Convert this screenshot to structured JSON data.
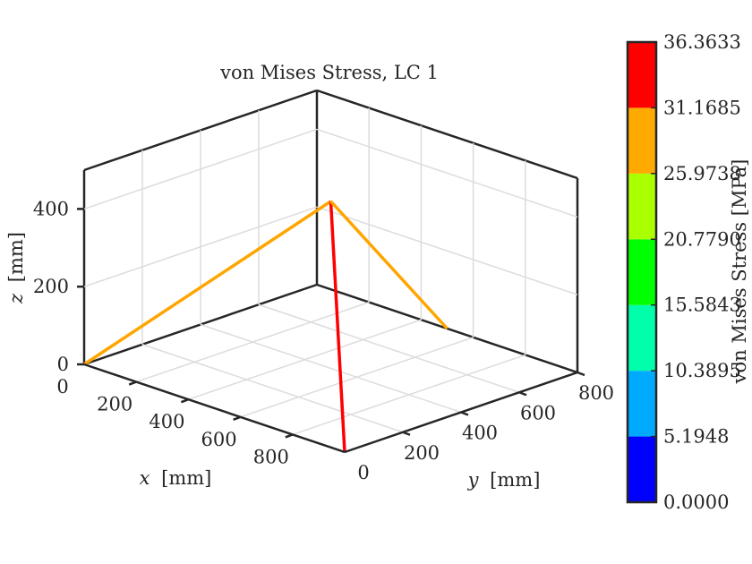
{
  "chart_data": {
    "type": "line",
    "title": "von Mises Stress, LC 1",
    "xlabel_var": "x",
    "xlabel_unit": "[mm]",
    "ylabel_var": "y",
    "ylabel_unit": "[mm]",
    "zlabel_var": "z",
    "zlabel_unit": "[mm]",
    "xlim": [
      0,
      1000
    ],
    "ylim": [
      0,
      800
    ],
    "zlim": [
      0,
      500
    ],
    "x_ticks": [
      "0",
      "200",
      "400",
      "600",
      "800"
    ],
    "y_ticks": [
      "0",
      "200",
      "400",
      "600",
      "800"
    ],
    "z_ticks": [
      "0",
      "200",
      "400"
    ],
    "grid": true,
    "members": [
      {
        "from": [
          0,
          0,
          0
        ],
        "to": [
          500,
          400,
          430
        ],
        "stress": 26.8,
        "color": "#ffa500"
      },
      {
        "from": [
          1000,
          0,
          0
        ],
        "to": [
          500,
          400,
          430
        ],
        "stress": 36.3633,
        "color": "#ff0000"
      },
      {
        "from": [
          500,
          800,
          0
        ],
        "to": [
          500,
          400,
          430
        ],
        "stress": 26.8,
        "color": "#ffa500"
      }
    ],
    "colorbar": {
      "label": "von Mises Stress [MPa]",
      "tick_labels": [
        "0.0000",
        "5.1948",
        "10.3895",
        "15.5843",
        "20.7790",
        "25.9738",
        "31.1685",
        "36.3633"
      ],
      "bands": [
        "#0000ff",
        "#00aaff",
        "#00ffaa",
        "#00ff00",
        "#aaff00",
        "#ffaa00",
        "#ff0000"
      ]
    }
  }
}
